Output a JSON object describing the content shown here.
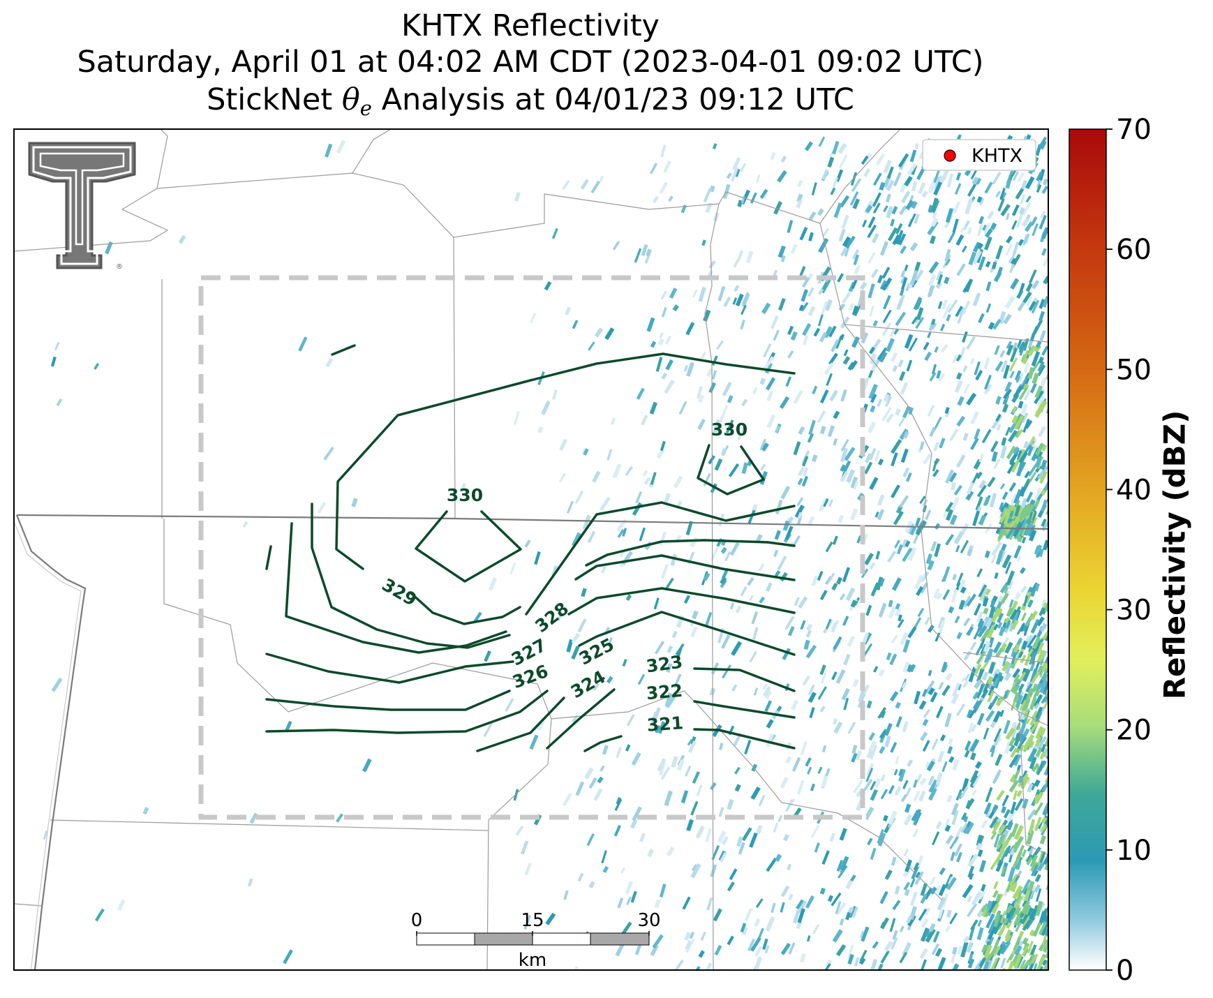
{
  "title": {
    "line1": "KHTX Reflectivity",
    "line2": "Saturday, April 01 at 04:02 AM CDT (2023-04-01 09:02 UTC)",
    "line3_prefix": "StickNet ",
    "line3_symbol": "θ",
    "line3_subscript": "e",
    "line3_suffix": " Analysis at 04/01/23 09:12 UTC"
  },
  "legend": {
    "label": "KHTX",
    "marker_color": "#ff0000"
  },
  "colorbar": {
    "label": "Reflectivity (dBZ)",
    "ticks": [
      "0",
      "10",
      "20",
      "30",
      "40",
      "50",
      "60",
      "70"
    ],
    "min": 0,
    "max": 70
  },
  "scale_bar": {
    "ticks": [
      "0",
      "15",
      "30"
    ],
    "unit": "km"
  },
  "contours": {
    "color": "#0b4a2a",
    "labels": [
      "330",
      "330",
      "329",
      "328",
      "327",
      "326",
      "325",
      "324",
      "323",
      "322",
      "321"
    ]
  },
  "logo": {
    "name": "texas-tech-double-t-logo",
    "registered_mark": "®"
  },
  "colors": {
    "analysis_box": "#c8c8c8",
    "county_lines": "#9a9a9a",
    "state_lines": "#7a7a7a",
    "radar_light": "#b8dcec",
    "radar_mid": "#2d9bb5",
    "radar_strong": "#7ec98a"
  }
}
